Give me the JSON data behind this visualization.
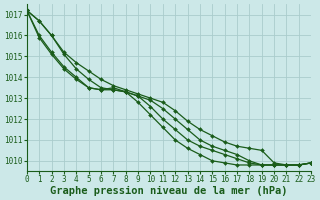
{
  "title": "Graphe pression niveau de la mer (hPa)",
  "background_color": "#cce8e8",
  "grid_color": "#aacccc",
  "line_color": "#1a5c1a",
  "xlim": [
    0,
    23
  ],
  "ylim": [
    1009.5,
    1017.5
  ],
  "yticks": [
    1010,
    1011,
    1012,
    1013,
    1014,
    1015,
    1016,
    1017
  ],
  "xticks": [
    0,
    1,
    2,
    3,
    4,
    5,
    6,
    7,
    8,
    9,
    10,
    11,
    12,
    13,
    14,
    15,
    16,
    17,
    18,
    19,
    20,
    21,
    22,
    23
  ],
  "series": [
    [
      1017.2,
      1016.7,
      1016.0,
      1015.2,
      1014.7,
      1014.3,
      1013.9,
      1013.6,
      1013.4,
      1013.2,
      1013.0,
      1012.8,
      1012.4,
      1011.9,
      1011.5,
      1011.2,
      1010.9,
      1010.7,
      1010.6,
      1010.5,
      1009.9,
      1009.8,
      1009.8,
      1009.9
    ],
    [
      1017.2,
      1016.0,
      1015.2,
      1014.5,
      1014.0,
      1013.5,
      1013.4,
      1013.4,
      1013.3,
      1013.1,
      1012.9,
      1012.5,
      1012.0,
      1011.5,
      1011.0,
      1010.7,
      1010.5,
      1010.3,
      1010.0,
      1009.8,
      1009.8,
      1009.8,
      1009.8,
      1009.9
    ],
    [
      1017.2,
      1015.9,
      1015.1,
      1014.4,
      1013.9,
      1013.5,
      1013.4,
      1013.5,
      1013.3,
      1013.1,
      1012.6,
      1012.0,
      1011.5,
      1011.0,
      1010.7,
      1010.5,
      1010.3,
      1010.1,
      1009.9,
      1009.8,
      1009.8,
      1009.8,
      1009.8,
      1009.9
    ],
    [
      1017.2,
      1016.7,
      1016.0,
      1015.1,
      1014.4,
      1013.9,
      1013.5,
      1013.4,
      1013.3,
      1012.8,
      1012.2,
      1011.6,
      1011.0,
      1010.6,
      1010.3,
      1010.0,
      1009.9,
      1009.8,
      1009.8,
      1009.8,
      1009.8,
      1009.8,
      1009.8,
      1009.9
    ]
  ],
  "marker": "D",
  "markersize": 2.0,
  "linewidth": 0.9,
  "title_fontsize": 7.5,
  "tick_fontsize": 5.5
}
